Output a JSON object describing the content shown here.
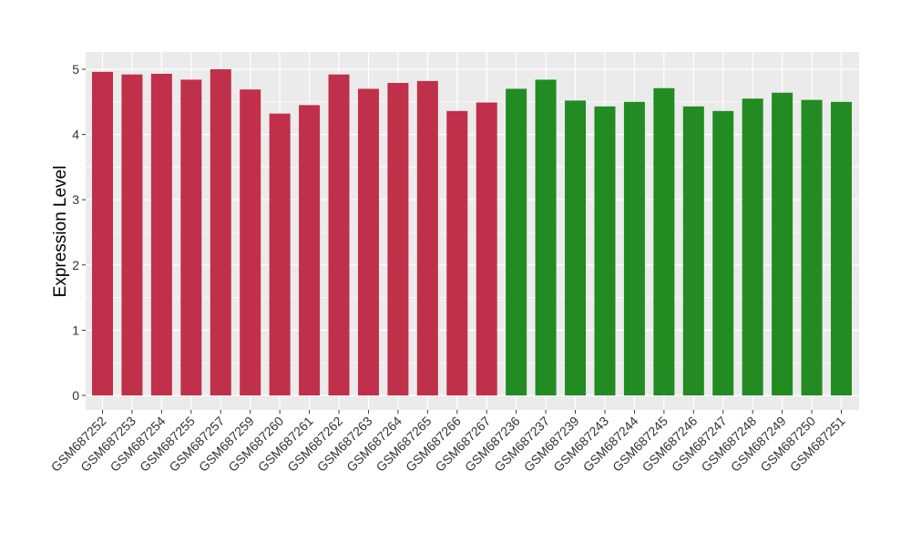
{
  "chart_data": {
    "type": "bar",
    "title": "",
    "xlabel": "",
    "ylabel": "Expression Level",
    "ylim": [
      0,
      5.25
    ],
    "yticks": [
      0,
      1,
      2,
      3,
      4,
      5
    ],
    "grid": true,
    "legend": "none",
    "categories": [
      "GSM687252",
      "GSM687253",
      "GSM687254",
      "GSM687255",
      "GSM687257",
      "GSM687259",
      "GSM687260",
      "GSM687261",
      "GSM687262",
      "GSM687263",
      "GSM687264",
      "GSM687265",
      "GSM687266",
      "GSM687267",
      "GSM687236",
      "GSM687237",
      "GSM687239",
      "GSM687243",
      "GSM687244",
      "GSM687245",
      "GSM687246",
      "GSM687247",
      "GSM687248",
      "GSM687249",
      "GSM687250",
      "GSM687251"
    ],
    "values": [
      4.96,
      4.92,
      4.93,
      4.84,
      5.0,
      4.69,
      4.32,
      4.45,
      4.92,
      4.7,
      4.79,
      4.82,
      4.36,
      4.49,
      4.7,
      4.84,
      4.52,
      4.43,
      4.5,
      4.71,
      4.43,
      4.36,
      4.55,
      4.64,
      4.53,
      4.5
    ],
    "group_sizes": [
      14,
      12
    ],
    "colors": [
      "#c0304a",
      "#228b22"
    ],
    "panel_background": "#ebebeb",
    "gridline_color": "#ffffff"
  }
}
